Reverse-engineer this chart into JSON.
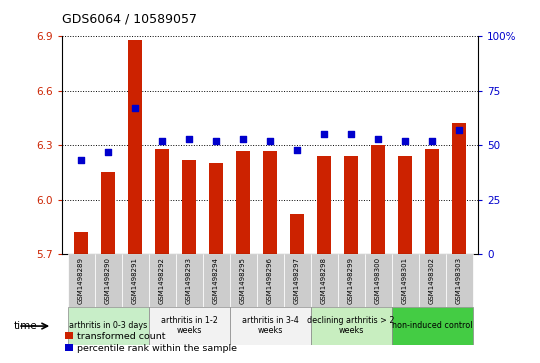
{
  "title": "GDS6064 / 10589057",
  "samples": [
    "GSM1498289",
    "GSM1498290",
    "GSM1498291",
    "GSM1498292",
    "GSM1498293",
    "GSM1498294",
    "GSM1498295",
    "GSM1498296",
    "GSM1498297",
    "GSM1498298",
    "GSM1498299",
    "GSM1498300",
    "GSM1498301",
    "GSM1498302",
    "GSM1498303"
  ],
  "bar_values": [
    5.82,
    6.15,
    6.88,
    6.28,
    6.22,
    6.2,
    6.27,
    6.27,
    5.92,
    6.24,
    6.24,
    6.3,
    6.24,
    6.28,
    6.42
  ],
  "dot_values": [
    43,
    47,
    67,
    52,
    53,
    52,
    53,
    52,
    48,
    55,
    55,
    53,
    52,
    52,
    57
  ],
  "bar_color": "#cc2200",
  "dot_color": "#0000cc",
  "ylim_left": [
    5.7,
    6.9
  ],
  "ylim_right": [
    0,
    100
  ],
  "yticks_left": [
    5.7,
    6.0,
    6.3,
    6.6,
    6.9
  ],
  "yticks_right": [
    0,
    25,
    50,
    75,
    100
  ],
  "ytick_labels_right": [
    "0",
    "25",
    "50",
    "75",
    "100%"
  ],
  "groups": [
    {
      "label": "arthritis in 0-3 days",
      "start": 0,
      "end": 3,
      "color": "#c8eec8"
    },
    {
      "label": "arthritis in 1-2\nweeks",
      "start": 3,
      "end": 6,
      "color": "#f2f2f2"
    },
    {
      "label": "arthritis in 3-4\nweeks",
      "start": 6,
      "end": 9,
      "color": "#f2f2f2"
    },
    {
      "label": "declining arthritis > 2\nweeks",
      "start": 9,
      "end": 12,
      "color": "#c8eec0"
    },
    {
      "label": "non-induced control",
      "start": 12,
      "end": 15,
      "color": "#44cc44"
    }
  ],
  "legend_items": [
    {
      "label": "transformed count",
      "color": "#cc2200"
    },
    {
      "label": "percentile rank within the sample",
      "color": "#0000cc"
    }
  ],
  "time_label": "time",
  "background_color": "#ffffff"
}
